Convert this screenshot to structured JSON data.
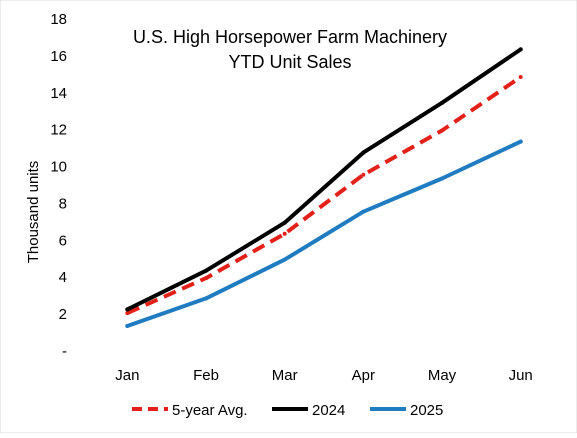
{
  "chart_data": {
    "type": "line",
    "title_lines": [
      "U.S. High Horsepower  Farm Machinery",
      "YTD Unit Sales"
    ],
    "xlabel": "",
    "ylabel": "Thousand units",
    "categories": [
      "Jan",
      "Feb",
      "Mar",
      "Apr",
      "May",
      "Jun"
    ],
    "ylim": [
      0,
      18
    ],
    "y_tick_labels": [
      "-",
      "2",
      "4",
      "6",
      "8",
      "10",
      "12",
      "14",
      "16",
      "18"
    ],
    "grid": false,
    "legend_position": "bottom",
    "series": [
      {
        "name": "5-year Avg.",
        "values": [
          2.0,
          3.9,
          6.3,
          9.5,
          11.9,
          14.8
        ],
        "color": "#e32119",
        "style": "dashed"
      },
      {
        "name": "2024",
        "values": [
          2.2,
          4.3,
          6.9,
          10.7,
          13.4,
          16.3
        ],
        "color": "#000000",
        "style": "solid"
      },
      {
        "name": "2025",
        "values": [
          1.3,
          2.8,
          4.9,
          7.5,
          9.3,
          11.3
        ],
        "color": "#1f7cc1",
        "style": "solid"
      }
    ]
  }
}
